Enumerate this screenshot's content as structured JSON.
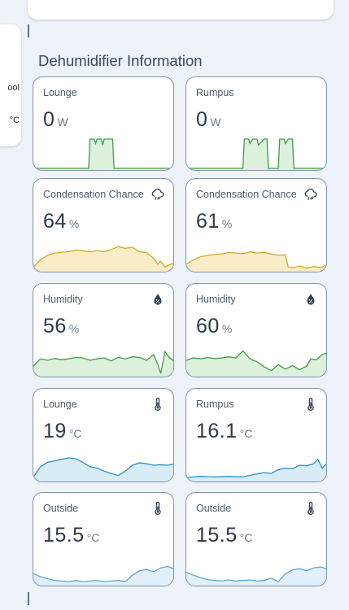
{
  "section": {
    "title": "Dehumidifier Information"
  },
  "left_card": {
    "line1": "ool",
    "line2": "°C"
  },
  "cards": [
    {
      "name": "Lounge",
      "value": "0",
      "unit": "W",
      "icon": "",
      "color": "#3e9e46",
      "fill": "#dcf0dc",
      "spark": [
        [
          0,
          0
        ],
        [
          0.39,
          0
        ],
        [
          0.4,
          1
        ],
        [
          0.43,
          1
        ],
        [
          0.44,
          0.85
        ],
        [
          0.45,
          1
        ],
        [
          0.48,
          1
        ],
        [
          0.49,
          0.8
        ],
        [
          0.5,
          1
        ],
        [
          0.56,
          1
        ],
        [
          0.57,
          0
        ],
        [
          1,
          0
        ]
      ]
    },
    {
      "name": "Rumpus",
      "value": "0",
      "unit": "W",
      "icon": "",
      "color": "#3e9e46",
      "fill": "#dcf0dc",
      "spark": [
        [
          0,
          0
        ],
        [
          0.4,
          0
        ],
        [
          0.41,
          1
        ],
        [
          0.44,
          1
        ],
        [
          0.45,
          0.85
        ],
        [
          0.47,
          1
        ],
        [
          0.5,
          1
        ],
        [
          0.51,
          0.8
        ],
        [
          0.55,
          1
        ],
        [
          0.57,
          1
        ],
        [
          0.58,
          0
        ],
        [
          0.65,
          0
        ],
        [
          0.66,
          1
        ],
        [
          0.69,
          1
        ],
        [
          0.7,
          0.85
        ],
        [
          0.72,
          1
        ],
        [
          0.75,
          1
        ],
        [
          0.76,
          0
        ],
        [
          1,
          0
        ]
      ]
    },
    {
      "name": "Condensation Chance",
      "value": "64",
      "unit": "%",
      "icon": "cloud-rain-icon",
      "color": "#d8a82a",
      "fill": "#faedc8",
      "spark": [
        [
          0,
          0.1
        ],
        [
          0.05,
          0.35
        ],
        [
          0.1,
          0.5
        ],
        [
          0.15,
          0.58
        ],
        [
          0.2,
          0.6
        ],
        [
          0.25,
          0.63
        ],
        [
          0.3,
          0.68
        ],
        [
          0.35,
          0.66
        ],
        [
          0.4,
          0.62
        ],
        [
          0.45,
          0.66
        ],
        [
          0.5,
          0.62
        ],
        [
          0.55,
          0.7
        ],
        [
          0.6,
          0.8
        ],
        [
          0.65,
          0.74
        ],
        [
          0.7,
          0.78
        ],
        [
          0.75,
          0.62
        ],
        [
          0.8,
          0.6
        ],
        [
          0.85,
          0.4
        ],
        [
          0.88,
          0.2
        ],
        [
          0.9,
          0.3
        ],
        [
          0.93,
          0.1
        ],
        [
          0.96,
          0.18
        ],
        [
          1,
          0.25
        ]
      ]
    },
    {
      "name": "Condensation Chance",
      "value": "61",
      "unit": "%",
      "icon": "cloud-rain-icon",
      "color": "#d8a82a",
      "fill": "#faedc8",
      "spark": [
        [
          0,
          0.2
        ],
        [
          0.05,
          0.35
        ],
        [
          0.1,
          0.45
        ],
        [
          0.15,
          0.5
        ],
        [
          0.2,
          0.53
        ],
        [
          0.25,
          0.55
        ],
        [
          0.3,
          0.6
        ],
        [
          0.35,
          0.58
        ],
        [
          0.4,
          0.56
        ],
        [
          0.45,
          0.62
        ],
        [
          0.5,
          0.58
        ],
        [
          0.55,
          0.6
        ],
        [
          0.6,
          0.55
        ],
        [
          0.65,
          0.5
        ],
        [
          0.7,
          0.52
        ],
        [
          0.72,
          0.1
        ],
        [
          0.76,
          0.08
        ],
        [
          0.8,
          0.14
        ],
        [
          0.85,
          0.06
        ],
        [
          0.9,
          0.12
        ],
        [
          0.95,
          0.08
        ],
        [
          1,
          0.2
        ]
      ]
    },
    {
      "name": "Humidity",
      "value": "56",
      "unit": "%",
      "icon": "water-percent-icon",
      "color": "#3e9e46",
      "fill": "#dcf0dc",
      "spark": [
        [
          0,
          0.3
        ],
        [
          0.05,
          0.55
        ],
        [
          0.1,
          0.5
        ],
        [
          0.15,
          0.56
        ],
        [
          0.2,
          0.52
        ],
        [
          0.25,
          0.55
        ],
        [
          0.3,
          0.6
        ],
        [
          0.35,
          0.58
        ],
        [
          0.4,
          0.5
        ],
        [
          0.45,
          0.55
        ],
        [
          0.5,
          0.58
        ],
        [
          0.55,
          0.48
        ],
        [
          0.6,
          0.6
        ],
        [
          0.65,
          0.55
        ],
        [
          0.7,
          0.62
        ],
        [
          0.75,
          0.6
        ],
        [
          0.8,
          0.5
        ],
        [
          0.85,
          0.7
        ],
        [
          0.88,
          0.35
        ],
        [
          0.9,
          0.05
        ],
        [
          0.93,
          0.8
        ],
        [
          0.96,
          0.6
        ],
        [
          1,
          0.45
        ]
      ]
    },
    {
      "name": "Humidity",
      "value": "60",
      "unit": "%",
      "icon": "water-percent-icon",
      "color": "#3e9e46",
      "fill": "#dcf0dc",
      "spark": [
        [
          0,
          0.5
        ],
        [
          0.05,
          0.58
        ],
        [
          0.1,
          0.55
        ],
        [
          0.15,
          0.6
        ],
        [
          0.2,
          0.56
        ],
        [
          0.25,
          0.58
        ],
        [
          0.3,
          0.62
        ],
        [
          0.35,
          0.58
        ],
        [
          0.4,
          0.82
        ],
        [
          0.45,
          0.55
        ],
        [
          0.5,
          0.45
        ],
        [
          0.55,
          0.28
        ],
        [
          0.6,
          0.15
        ],
        [
          0.65,
          0.35
        ],
        [
          0.7,
          0.2
        ],
        [
          0.75,
          0.32
        ],
        [
          0.8,
          0.18
        ],
        [
          0.85,
          0.3
        ],
        [
          0.88,
          0.55
        ],
        [
          0.92,
          0.52
        ],
        [
          0.96,
          0.7
        ],
        [
          1,
          0.75
        ]
      ]
    },
    {
      "name": "Lounge",
      "value": "19",
      "unit": "°C",
      "icon": "thermometer-icon",
      "color": "#2a8fc0",
      "fill": "#d8ecf6",
      "spark": [
        [
          0,
          0.1
        ],
        [
          0.05,
          0.45
        ],
        [
          0.1,
          0.6
        ],
        [
          0.15,
          0.65
        ],
        [
          0.2,
          0.7
        ],
        [
          0.25,
          0.75
        ],
        [
          0.3,
          0.72
        ],
        [
          0.35,
          0.6
        ],
        [
          0.4,
          0.45
        ],
        [
          0.45,
          0.4
        ],
        [
          0.5,
          0.3
        ],
        [
          0.55,
          0.22
        ],
        [
          0.6,
          0.15
        ],
        [
          0.65,
          0.3
        ],
        [
          0.7,
          0.5
        ],
        [
          0.75,
          0.58
        ],
        [
          0.8,
          0.55
        ],
        [
          0.85,
          0.5
        ],
        [
          0.9,
          0.52
        ],
        [
          0.95,
          0.5
        ],
        [
          1,
          0.55
        ]
      ]
    },
    {
      "name": "Rumpus",
      "value": "16.1",
      "unit": "°C",
      "icon": "thermometer-icon",
      "color": "#2a8fc0",
      "fill": "#d8ecf6",
      "spark": [
        [
          0,
          0.08
        ],
        [
          0.1,
          0.12
        ],
        [
          0.2,
          0.1
        ],
        [
          0.3,
          0.12
        ],
        [
          0.4,
          0.1
        ],
        [
          0.5,
          0.2
        ],
        [
          0.55,
          0.25
        ],
        [
          0.6,
          0.22
        ],
        [
          0.65,
          0.35
        ],
        [
          0.7,
          0.4
        ],
        [
          0.75,
          0.38
        ],
        [
          0.8,
          0.5
        ],
        [
          0.85,
          0.48
        ],
        [
          0.9,
          0.55
        ],
        [
          0.93,
          0.7
        ],
        [
          0.96,
          0.4
        ],
        [
          1,
          0.6
        ]
      ]
    },
    {
      "name": "Outside",
      "value": "15.5",
      "unit": "°C",
      "icon": "thermometer-icon",
      "color": "#5aa8d8",
      "fill": "#e1f0fa",
      "spark": [
        [
          0,
          0.35
        ],
        [
          0.05,
          0.25
        ],
        [
          0.1,
          0.18
        ],
        [
          0.15,
          0.12
        ],
        [
          0.2,
          0.1
        ],
        [
          0.25,
          0.08
        ],
        [
          0.3,
          0.12
        ],
        [
          0.35,
          0.08
        ],
        [
          0.4,
          0.1
        ],
        [
          0.45,
          0.12
        ],
        [
          0.5,
          0.08
        ],
        [
          0.55,
          0.1
        ],
        [
          0.6,
          0.12
        ],
        [
          0.65,
          0.08
        ],
        [
          0.7,
          0.3
        ],
        [
          0.75,
          0.45
        ],
        [
          0.8,
          0.5
        ],
        [
          0.85,
          0.42
        ],
        [
          0.9,
          0.55
        ],
        [
          0.95,
          0.6
        ],
        [
          1,
          0.5
        ]
      ]
    },
    {
      "name": "Outside",
      "value": "15.5",
      "unit": "°C",
      "icon": "thermometer-icon",
      "color": "#5aa8d8",
      "fill": "#e1f0fa",
      "spark": [
        [
          0,
          0.4
        ],
        [
          0.05,
          0.3
        ],
        [
          0.1,
          0.22
        ],
        [
          0.15,
          0.15
        ],
        [
          0.2,
          0.12
        ],
        [
          0.25,
          0.1
        ],
        [
          0.3,
          0.14
        ],
        [
          0.35,
          0.1
        ],
        [
          0.4,
          0.12
        ],
        [
          0.45,
          0.14
        ],
        [
          0.5,
          0.1
        ],
        [
          0.55,
          0.12
        ],
        [
          0.6,
          0.2
        ],
        [
          0.65,
          0.08
        ],
        [
          0.7,
          0.35
        ],
        [
          0.75,
          0.48
        ],
        [
          0.8,
          0.52
        ],
        [
          0.85,
          0.45
        ],
        [
          0.9,
          0.55
        ],
        [
          0.95,
          0.58
        ],
        [
          1,
          0.5
        ]
      ]
    }
  ]
}
